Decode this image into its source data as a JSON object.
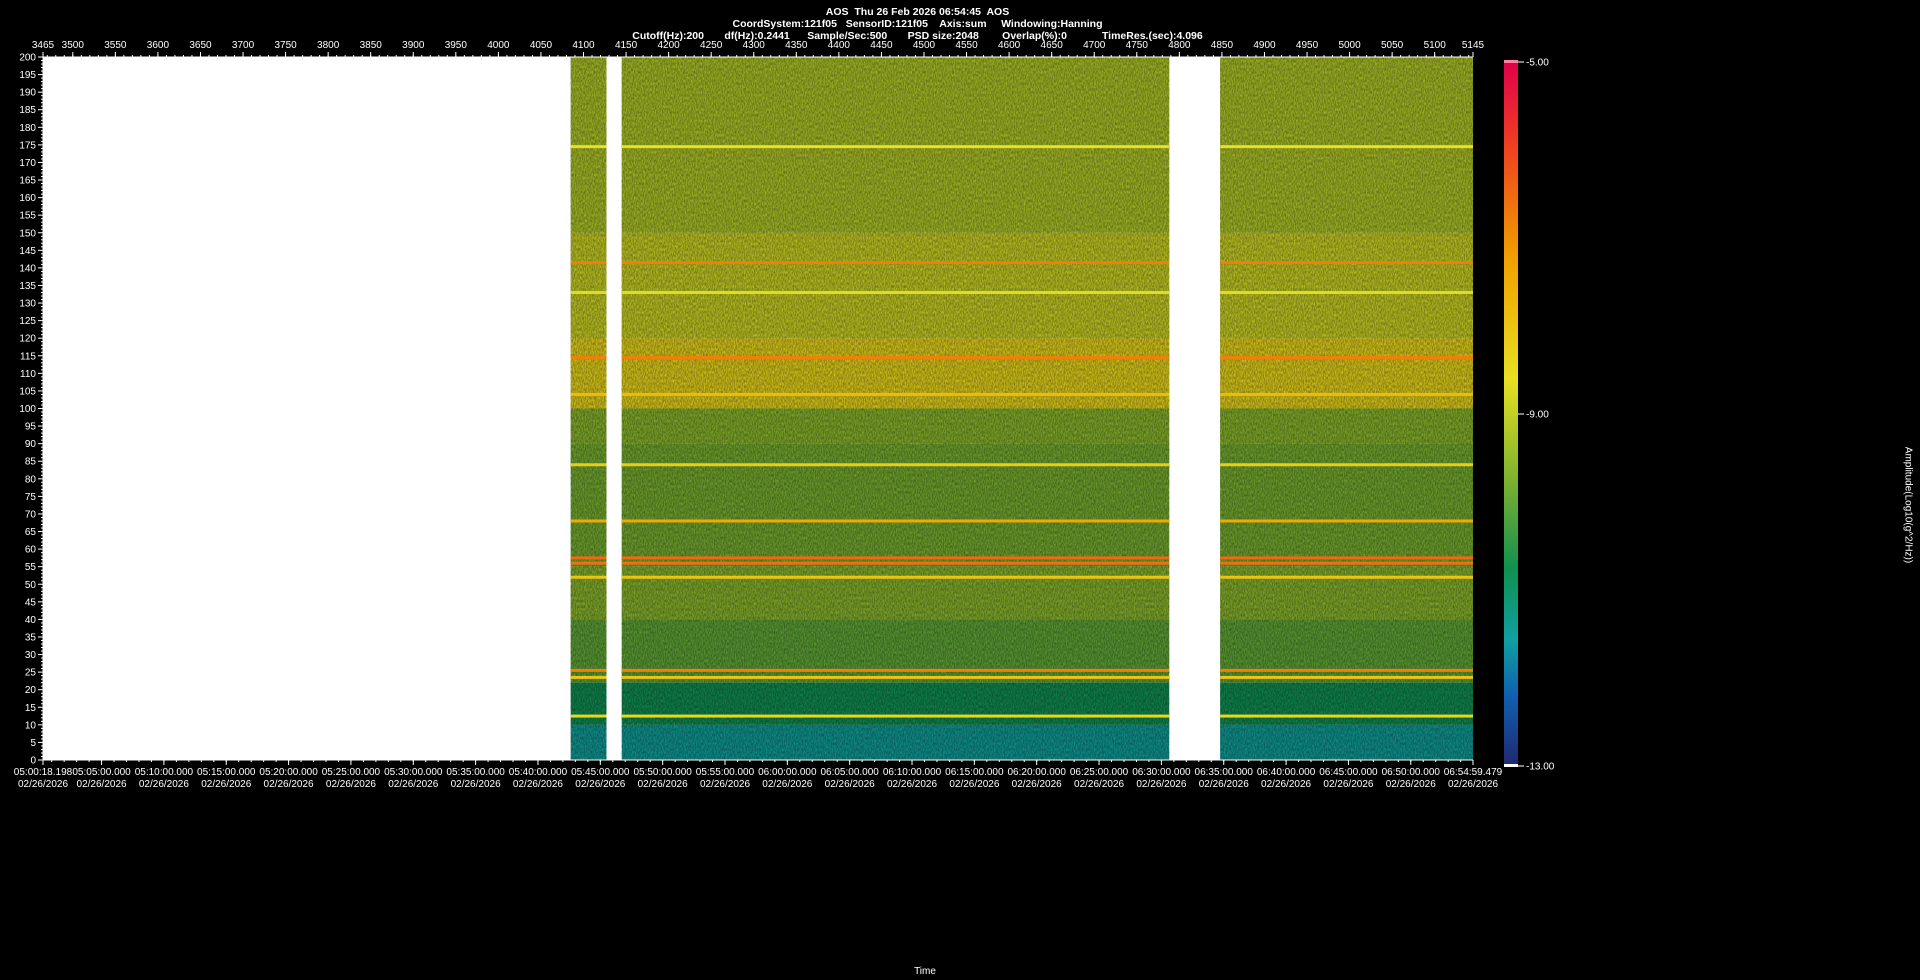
{
  "header": {
    "line1": "AOS  Thu 26 Feb 2026 06:54:45  AOS",
    "line2": "CoordSystem:121f05   SensorID:121f05    Axis:sum     Windowing:Hanning",
    "line3": "Cutoff(Hz):200       df(Hz):0.2441      Sample/Sec:500       PSD size:2048        Overlap(%):0            TimeRes.(sec):4.096"
  },
  "chart_data": {
    "type": "heatmap",
    "title": "AOS  Thu 26 Feb 2026 06:54:45  AOS",
    "xlabel": "Time",
    "ylabel": "",
    "colorbar_label": "Amplitude(Log10(g^2/Hz))",
    "colorbar_ticks": [
      "-5.00",
      "-9.00",
      "-13.00"
    ],
    "clim": [
      -13,
      -5
    ],
    "ylim": [
      0,
      200
    ],
    "y_ticks": [
      200,
      195,
      190,
      185,
      180,
      175,
      170,
      165,
      160,
      155,
      150,
      145,
      140,
      135,
      130,
      125,
      120,
      115,
      110,
      105,
      100,
      95,
      90,
      85,
      80,
      75,
      70,
      65,
      60,
      55,
      50,
      45,
      40,
      35,
      30,
      25,
      20,
      15,
      10,
      5,
      0
    ],
    "top_axis_ticks": [
      "3465",
      "3500",
      "3550",
      "3600",
      "3650",
      "3700",
      "3750",
      "3800",
      "3850",
      "3900",
      "3950",
      "4000",
      "4050",
      "4100",
      "4150",
      "4200",
      "4250",
      "4300",
      "4350",
      "4400",
      "4450",
      "4500",
      "4550",
      "4600",
      "4650",
      "4700",
      "4750",
      "4800",
      "4850",
      "4900",
      "4950",
      "5000",
      "5050",
      "5100",
      "5145"
    ],
    "top_axis_range": [
      3465,
      5145
    ],
    "bottom_axis_ticks": [
      {
        "time": "05:00:18.198",
        "date": "02/26/2026"
      },
      {
        "time": "05:05:00.000",
        "date": "02/26/2026"
      },
      {
        "time": "05:10:00.000",
        "date": "02/26/2026"
      },
      {
        "time": "05:15:00.000",
        "date": "02/26/2026"
      },
      {
        "time": "05:20:00.000",
        "date": "02/26/2026"
      },
      {
        "time": "05:25:00.000",
        "date": "02/26/2026"
      },
      {
        "time": "05:30:00.000",
        "date": "02/26/2026"
      },
      {
        "time": "05:35:00.000",
        "date": "02/26/2026"
      },
      {
        "time": "05:40:00.000",
        "date": "02/26/2026"
      },
      {
        "time": "05:45:00.000",
        "date": "02/26/2026"
      },
      {
        "time": "05:50:00.000",
        "date": "02/26/2026"
      },
      {
        "time": "05:55:00.000",
        "date": "02/26/2026"
      },
      {
        "time": "06:00:00.000",
        "date": "02/26/2026"
      },
      {
        "time": "06:05:00.000",
        "date": "02/26/2026"
      },
      {
        "time": "06:10:00.000",
        "date": "02/26/2026"
      },
      {
        "time": "06:15:00.000",
        "date": "02/26/2026"
      },
      {
        "time": "06:20:00.000",
        "date": "02/26/2026"
      },
      {
        "time": "06:25:00.000",
        "date": "02/26/2026"
      },
      {
        "time": "06:30:00.000",
        "date": "02/26/2026"
      },
      {
        "time": "06:35:00.000",
        "date": "02/26/2026"
      },
      {
        "time": "06:40:00.000",
        "date": "02/26/2026"
      },
      {
        "time": "06:45:00.000",
        "date": "02/26/2026"
      },
      {
        "time": "06:50:00.000",
        "date": "02/26/2026"
      },
      {
        "time": "06:54:59.479",
        "date": "02/26/2026"
      }
    ],
    "data_segments": [
      {
        "from": 4085,
        "to": 4127
      },
      {
        "from": 4145,
        "to": 4788
      },
      {
        "from": 4848,
        "to": 5145
      }
    ],
    "band_levels": [
      {
        "hz_from": 0,
        "hz_to": 10,
        "level": -11.5
      },
      {
        "hz_from": 10,
        "hz_to": 22,
        "level": -10.8
      },
      {
        "hz_from": 22,
        "hz_to": 40,
        "level": -10.0
      },
      {
        "hz_from": 40,
        "hz_to": 55,
        "level": -9.6
      },
      {
        "hz_from": 55,
        "hz_to": 90,
        "level": -9.8
      },
      {
        "hz_from": 90,
        "hz_to": 100,
        "level": -9.6
      },
      {
        "hz_from": 100,
        "hz_to": 120,
        "level": -8.4
      },
      {
        "hz_from": 120,
        "hz_to": 150,
        "level": -8.9
      },
      {
        "hz_from": 150,
        "hz_to": 200,
        "level": -9.2
      }
    ],
    "tonal_lines": [
      {
        "hz": 141.5,
        "level": -6.8
      },
      {
        "hz": 114.5,
        "level": -6.8
      },
      {
        "hz": 104,
        "level": -7.8
      },
      {
        "hz": 84,
        "level": -8.2
      },
      {
        "hz": 68,
        "level": -7.4
      },
      {
        "hz": 57.5,
        "level": -6.5
      },
      {
        "hz": 56,
        "level": -6.6
      },
      {
        "hz": 52,
        "level": -8.0
      },
      {
        "hz": 25.5,
        "level": -6.8
      },
      {
        "hz": 23.5,
        "level": -8.0
      },
      {
        "hz": 12.5,
        "level": -8.4
      },
      {
        "hz": 174.5,
        "level": -8.6
      },
      {
        "hz": 133,
        "level": -8.7
      }
    ]
  }
}
